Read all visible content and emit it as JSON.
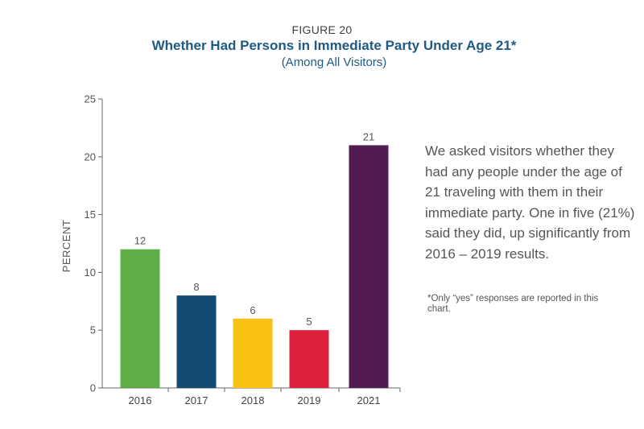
{
  "figure_label": "FIGURE 20",
  "title": "Whether Had Persons in Immediate Party Under Age 21*",
  "subtitle": "(Among All Visitors)",
  "description": "We asked visitors whether they had any people under the age of 21 traveling with them in their immediate party. One in five (21%) said they did, up significantly from 2016 – 2019 results.",
  "footnote": "*Only “yes” responses are reported in this chart.",
  "chart_data": {
    "type": "bar",
    "categories": [
      "2016",
      "2017",
      "2018",
      "2019",
      "2021"
    ],
    "values": [
      12,
      8,
      6,
      5,
      21
    ],
    "colors": [
      "#5fad46",
      "#124b73",
      "#f9c213",
      "#dc1f3b",
      "#511c51"
    ],
    "ylabel": "PERCENT",
    "ylim": [
      0,
      25
    ],
    "yticks": [
      0,
      5,
      10,
      15,
      20,
      25
    ],
    "grid": false,
    "legend": "none"
  }
}
